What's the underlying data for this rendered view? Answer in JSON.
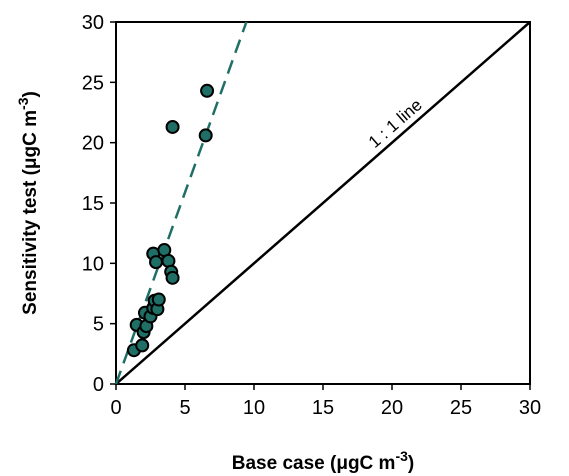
{
  "chart_data": {
    "type": "scatter",
    "title": "",
    "xlabel": "Base case (μgC m",
    "xlabel_sup": "-3",
    "xlabel_end": ")",
    "ylabel": "Sensitivity test (μgC m",
    "ylabel_sup": "-3",
    "ylabel_end": ")",
    "xlim": [
      0,
      30
    ],
    "ylim": [
      0,
      30
    ],
    "xticks": [
      0,
      5,
      10,
      15,
      20,
      25,
      30
    ],
    "yticks": [
      0,
      5,
      10,
      15,
      20,
      25,
      30
    ],
    "grid": false,
    "colors": {
      "marker_fill": "#1f6f66",
      "marker_edge": "#000000",
      "regression_line": "#1f6f66",
      "reference_line": "#000000"
    },
    "points": [
      {
        "x": 1.3,
        "y": 2.8
      },
      {
        "x": 1.5,
        "y": 4.9
      },
      {
        "x": 1.9,
        "y": 3.2
      },
      {
        "x": 2.0,
        "y": 4.3
      },
      {
        "x": 2.2,
        "y": 4.8
      },
      {
        "x": 2.1,
        "y": 5.9
      },
      {
        "x": 2.5,
        "y": 5.6
      },
      {
        "x": 2.7,
        "y": 6.3
      },
      {
        "x": 2.8,
        "y": 6.9
      },
      {
        "x": 3.0,
        "y": 6.2
      },
      {
        "x": 3.1,
        "y": 7.0
      },
      {
        "x": 2.7,
        "y": 10.8
      },
      {
        "x": 2.9,
        "y": 10.1
      },
      {
        "x": 3.5,
        "y": 11.1
      },
      {
        "x": 3.8,
        "y": 10.2
      },
      {
        "x": 4.0,
        "y": 9.3
      },
      {
        "x": 4.1,
        "y": 8.8
      },
      {
        "x": 4.1,
        "y": 21.3
      },
      {
        "x": 6.6,
        "y": 24.3
      },
      {
        "x": 6.5,
        "y": 20.6
      }
    ],
    "regression_line": {
      "style": "dashed",
      "x": [
        0,
        9.45
      ],
      "y": [
        0,
        30
      ]
    },
    "reference_line": {
      "label": "1 : 1 line",
      "x": [
        0,
        30
      ],
      "y": [
        0,
        30
      ]
    }
  }
}
